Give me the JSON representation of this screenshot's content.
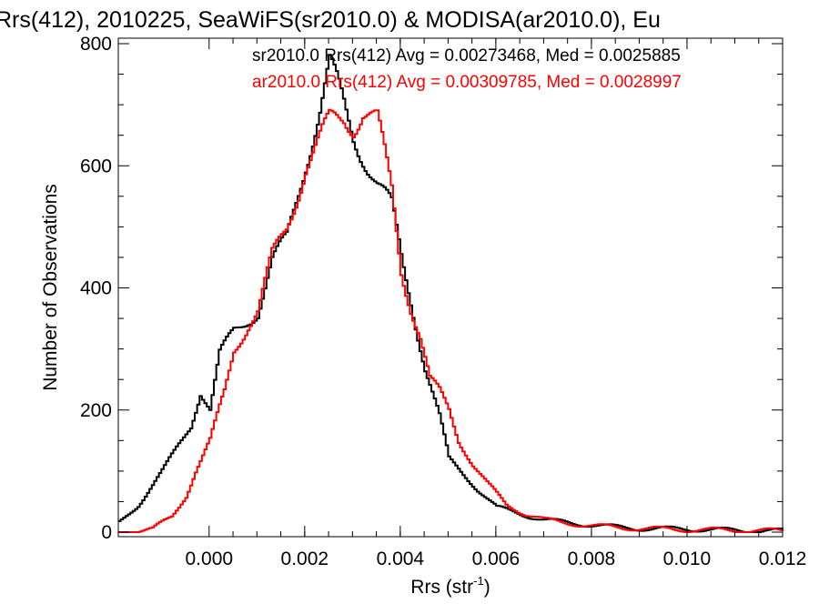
{
  "chart_data": {
    "type": "line",
    "title": "Rrs(412), 2010225, SeaWiFS(sr2010.0) & MODISA(ar2010.0), Eu",
    "xlabel": "Rrs (str",
    "xlabel_sup": "-1",
    "xlabel_close": ")",
    "ylabel": "Number of Observations",
    "xlim": [
      -0.0019,
      0.012
    ],
    "ylim": [
      0,
      800
    ],
    "x_ticks": [
      0.0,
      0.002,
      0.004,
      0.006,
      0.008,
      0.01,
      0.012
    ],
    "x_tick_labels": [
      "0.000",
      "0.002",
      "0.004",
      "0.006",
      "0.008",
      "0.010",
      "0.012"
    ],
    "y_ticks": [
      0,
      200,
      400,
      600,
      800
    ],
    "y_tick_labels": [
      "0",
      "200",
      "400",
      "600",
      "800"
    ],
    "legend": [
      {
        "text": "sr2010.0 Rrs(412) Avg = 0.00273468, Med = 0.0025885",
        "color": "#000000"
      },
      {
        "text": "ar2010.0 Rrs(412) Avg = 0.00309785, Med = 0.0028997",
        "color": "#ff0000"
      }
    ],
    "series": [
      {
        "color": "#000000",
        "x": [
          -0.0019,
          -0.0015,
          -0.001,
          -0.0006,
          -0.0004,
          -0.0002,
          0.0,
          0.0002,
          0.0005,
          0.0008,
          0.001,
          0.0013,
          0.0016,
          0.002,
          0.0023,
          0.0025,
          0.0027,
          0.003,
          0.0032,
          0.0035,
          0.0038,
          0.004,
          0.0042,
          0.0045,
          0.0048,
          0.005,
          0.0053,
          0.0056,
          0.006,
          0.0065,
          0.007,
          0.0075,
          0.008,
          0.0085,
          0.009,
          0.01,
          0.011,
          0.012
        ],
        "y": [
          15,
          45,
          100,
          150,
          175,
          230,
          200,
          290,
          330,
          350,
          360,
          440,
          480,
          610,
          690,
          760,
          720,
          650,
          620,
          570,
          530,
          450,
          380,
          270,
          190,
          120,
          95,
          70,
          40,
          30,
          20,
          15,
          12,
          8,
          6,
          5,
          3,
          2
        ]
      },
      {
        "color": "#ff0000",
        "x": [
          -0.0019,
          -0.0012,
          -0.0008,
          -0.0005,
          -0.0003,
          0.0,
          0.0003,
          0.0005,
          0.0008,
          0.001,
          0.0013,
          0.0016,
          0.002,
          0.0023,
          0.0025,
          0.0028,
          0.003,
          0.0032,
          0.0035,
          0.0038,
          0.004,
          0.0042,
          0.0044,
          0.0046,
          0.0048,
          0.005,
          0.0052,
          0.0055,
          0.0058,
          0.0062,
          0.0066,
          0.007,
          0.0075,
          0.008,
          0.0085,
          0.009,
          0.01,
          0.011,
          0.012
        ],
        "y": [
          0,
          5,
          25,
          60,
          100,
          150,
          230,
          300,
          340,
          360,
          450,
          500,
          600,
          640,
          670,
          680,
          670,
          690,
          670,
          560,
          430,
          370,
          320,
          250,
          230,
          200,
          150,
          110,
          80,
          45,
          30,
          20,
          15,
          10,
          8,
          6,
          4,
          3,
          2
        ]
      }
    ]
  }
}
